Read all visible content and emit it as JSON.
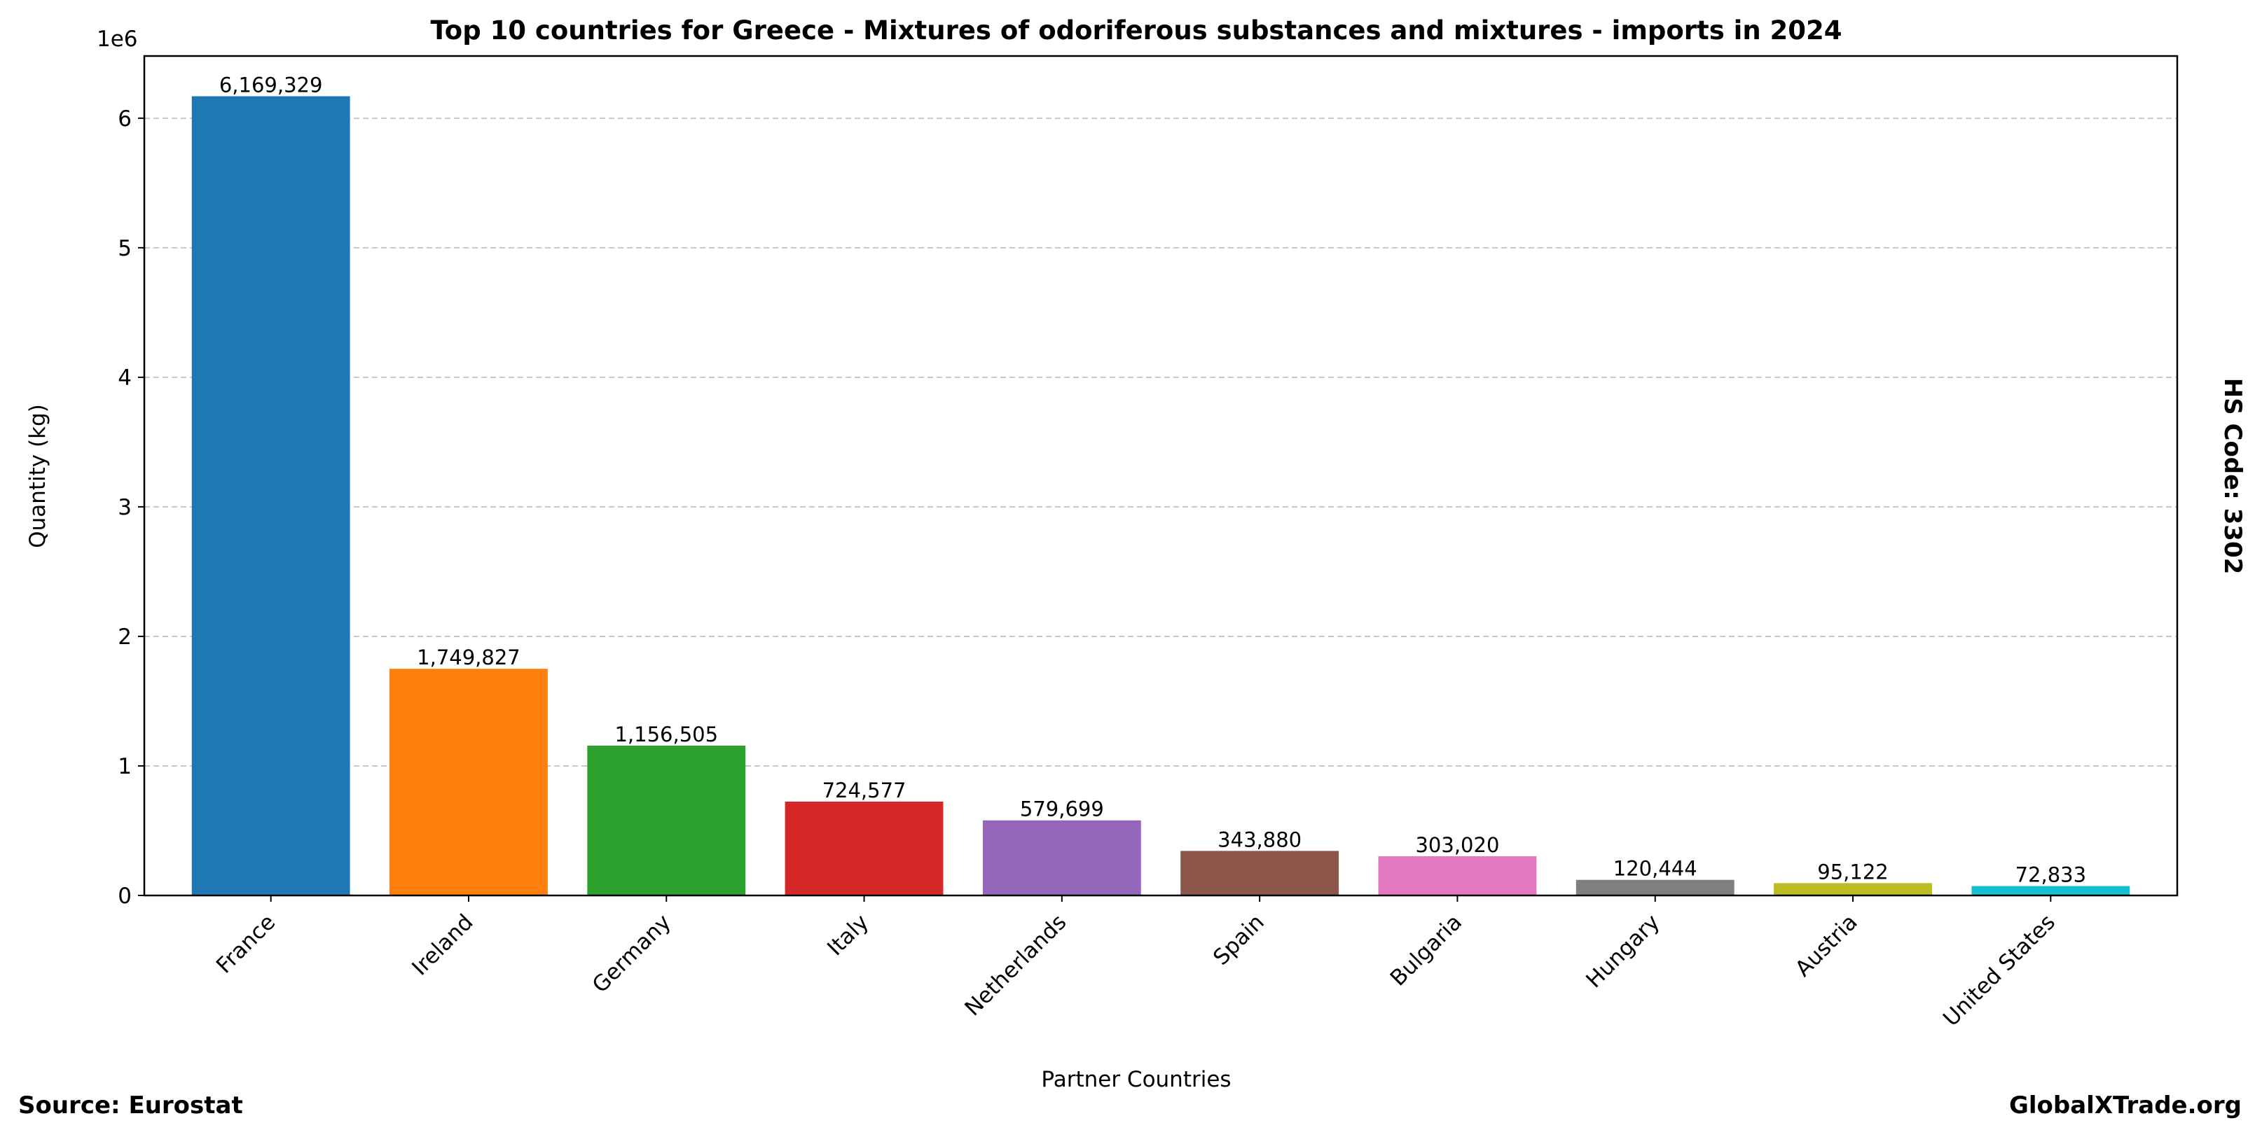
{
  "chart_data": {
    "type": "bar",
    "title": "Top 10 countries for Greece - Mixtures of odoriferous substances and mixtures - imports in 2024",
    "xlabel": "Partner Countries",
    "ylabel": "Quantity (kg)",
    "y_offset_label": "1e6",
    "ylim": [
      0,
      6480000
    ],
    "yticks": [
      0,
      1000000,
      2000000,
      3000000,
      4000000,
      5000000,
      6000000
    ],
    "ytick_labels": [
      "0",
      "1",
      "2",
      "3",
      "4",
      "5",
      "6"
    ],
    "grid": "y dashed",
    "categories": [
      "France",
      "Ireland",
      "Germany",
      "Italy",
      "Netherlands",
      "Spain",
      "Bulgaria",
      "Hungary",
      "Austria",
      "United States"
    ],
    "values": [
      6169329,
      1749827,
      1156505,
      724577,
      579699,
      343880,
      303020,
      120444,
      95122,
      72833
    ],
    "value_labels": [
      "6,169,329",
      "1,749,827",
      "1,156,505",
      "724,577",
      "579,699",
      "343,880",
      "303,020",
      "120,444",
      "95,122",
      "72,833"
    ],
    "colors": [
      "#1f77b4",
      "#ff7f0e",
      "#2ca02c",
      "#d62728",
      "#9467bd",
      "#8c564b",
      "#e377c2",
      "#7f7f7f",
      "#bcbd22",
      "#17becf"
    ]
  },
  "side_label": "HS Code: 3302",
  "source": "Source: Eurostat",
  "brand": "GlobalXTrade.org"
}
